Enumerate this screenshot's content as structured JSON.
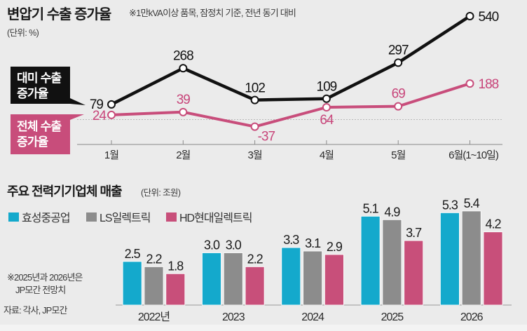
{
  "chart_data": [
    {
      "type": "line",
      "title": "변압기 수출 증가율",
      "note": "※1만kVA이상 품목, 잠정치 기준, 전년 동기 대비",
      "unit": "(단위: %)",
      "categories": [
        "1월",
        "2월",
        "3월",
        "4월",
        "5월",
        "6월(1~10일)"
      ],
      "series": [
        {
          "name": "대미 수출 증가율",
          "name_lines": [
            "대미 수출",
            "증가율"
          ],
          "color": "#111111",
          "values": [
            79,
            268,
            102,
            109,
            297,
            540
          ]
        },
        {
          "name": "전체 수출 증가율",
          "name_lines": [
            "전체 수출",
            "증가율"
          ],
          "color": "#c84d7b",
          "values": [
            24,
            39,
            -37,
            64,
            69,
            188
          ]
        }
      ],
      "ylim": [
        -130,
        540
      ],
      "zero_line": true,
      "legend": "left"
    },
    {
      "type": "bar",
      "title": "주요 전력기기업체 매출",
      "unit": "(단위: 조원)",
      "categories": [
        "2022년",
        "2023",
        "2024",
        "2025",
        "2026"
      ],
      "series": [
        {
          "name": "효성중공업",
          "color": "#14a9cc",
          "values": [
            2.5,
            3.0,
            3.3,
            5.1,
            5.3
          ]
        },
        {
          "name": "LS일렉트릭",
          "color": "#8c8c8c",
          "values": [
            2.2,
            3.0,
            3.1,
            4.9,
            5.4
          ]
        },
        {
          "name": "HD현대일렉트릭",
          "color": "#c84f7a",
          "values": [
            1.8,
            2.2,
            2.9,
            3.7,
            4.2
          ]
        }
      ],
      "value_labels": [
        "2.5",
        "2.2",
        "1.8",
        "3.0",
        "3.0",
        "2.2",
        "3.3",
        "3.1",
        "2.9",
        "5.1",
        "4.9",
        "3.7",
        "5.3",
        "5.4",
        "4.2"
      ],
      "ylim": [
        0,
        6
      ],
      "legend": "top-left",
      "footnote_lines": [
        "※2025년과 2026년은",
        "JP모간 전망치"
      ],
      "source": "자료: 각사, JP모간"
    }
  ]
}
